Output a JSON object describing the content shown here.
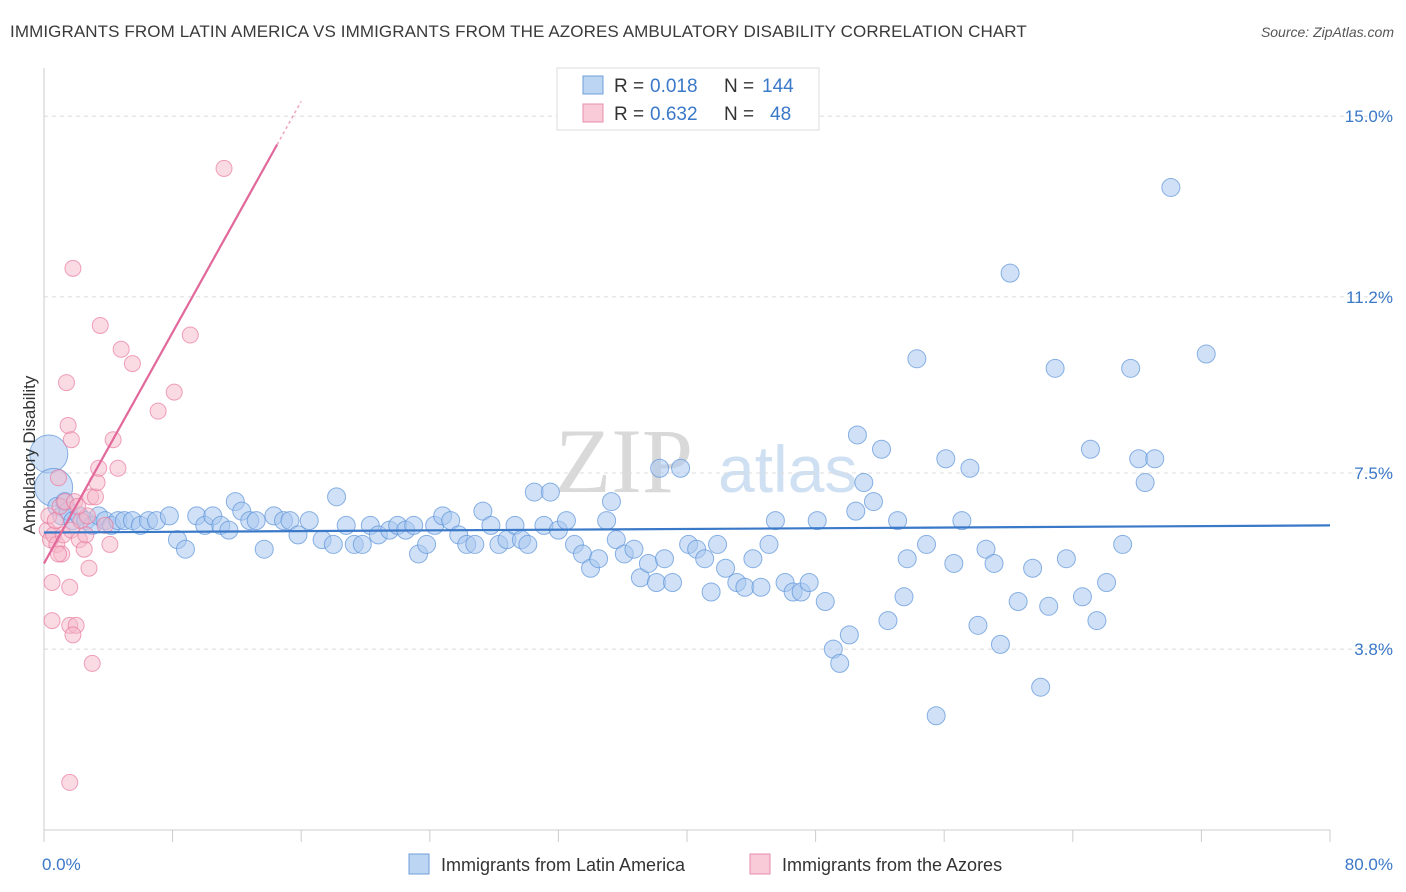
{
  "header": {
    "title": "IMMIGRANTS FROM LATIN AMERICA VS IMMIGRANTS FROM THE AZORES AMBULATORY DISABILITY CORRELATION CHART",
    "source": "Source: ZipAtlas.com"
  },
  "watermark": {
    "zip": "ZIP",
    "atlas": "atlas"
  },
  "legend": {
    "rows": [
      {
        "r_label": "R =",
        "r_value": "0.018",
        "n_label": "N =",
        "n_value": "144",
        "color": "#a9c9f0"
      },
      {
        "r_label": "R =",
        "r_value": "0.632",
        "n_label": "N =",
        "n_value": "48",
        "color": "#f5b8ca"
      }
    ]
  },
  "bottom_legend": {
    "items": [
      {
        "label": "Immigrants from Latin America",
        "color": "#a9c9f0"
      },
      {
        "label": "Immigrants from the Azores",
        "color": "#f5b8ca"
      }
    ]
  },
  "chart_data": {
    "type": "scatter",
    "xlabel": "",
    "ylabel": "Ambulatory Disability",
    "xlim": [
      0,
      80
    ],
    "ylim": [
      0,
      15.8
    ],
    "x_tick_labels": [
      "0.0%",
      "80.0%"
    ],
    "y_ticks": [
      {
        "value": 3.8,
        "label": "3.8%"
      },
      {
        "value": 7.5,
        "label": "7.5%"
      },
      {
        "value": 11.2,
        "label": "11.2%"
      },
      {
        "value": 15.0,
        "label": "15.0%"
      }
    ],
    "grid": true,
    "series": [
      {
        "name": "Immigrants from Latin America",
        "color": "#5b93d8",
        "fill": "#a9c9f0",
        "trend": {
          "x0": 0,
          "y0": 6.25,
          "x1": 80,
          "y1": 6.4
        },
        "points": [
          [
            0.3,
            7.9
          ],
          [
            0.6,
            7.2
          ],
          [
            0.8,
            6.8
          ],
          [
            1.1,
            6.6
          ],
          [
            1.3,
            6.9
          ],
          [
            1.5,
            6.7
          ],
          [
            1.8,
            6.5
          ],
          [
            2.2,
            6.6
          ],
          [
            2.6,
            6.5
          ],
          [
            3.0,
            6.4
          ],
          [
            3.4,
            6.6
          ],
          [
            3.8,
            6.5
          ],
          [
            4.2,
            6.4
          ],
          [
            4.6,
            6.5
          ],
          [
            5.0,
            6.5
          ],
          [
            5.5,
            6.5
          ],
          [
            6.0,
            6.4
          ],
          [
            6.5,
            6.5
          ],
          [
            7.0,
            6.5
          ],
          [
            7.8,
            6.6
          ],
          [
            8.3,
            6.1
          ],
          [
            8.8,
            5.9
          ],
          [
            9.5,
            6.6
          ],
          [
            10.0,
            6.4
          ],
          [
            10.5,
            6.6
          ],
          [
            11.0,
            6.4
          ],
          [
            11.5,
            6.3
          ],
          [
            11.9,
            6.9
          ],
          [
            12.3,
            6.7
          ],
          [
            12.8,
            6.5
          ],
          [
            13.2,
            6.5
          ],
          [
            13.7,
            5.9
          ],
          [
            14.3,
            6.6
          ],
          [
            14.9,
            6.5
          ],
          [
            15.3,
            6.5
          ],
          [
            15.8,
            6.2
          ],
          [
            16.5,
            6.5
          ],
          [
            17.3,
            6.1
          ],
          [
            18.0,
            6.0
          ],
          [
            18.2,
            7.0
          ],
          [
            18.8,
            6.4
          ],
          [
            19.3,
            6.0
          ],
          [
            19.8,
            6.0
          ],
          [
            20.3,
            6.4
          ],
          [
            20.8,
            6.2
          ],
          [
            21.5,
            6.3
          ],
          [
            22.0,
            6.4
          ],
          [
            22.5,
            6.3
          ],
          [
            23.0,
            6.4
          ],
          [
            23.3,
            5.8
          ],
          [
            23.8,
            6.0
          ],
          [
            24.3,
            6.4
          ],
          [
            24.8,
            6.6
          ],
          [
            25.3,
            6.5
          ],
          [
            25.8,
            6.2
          ],
          [
            26.3,
            6.0
          ],
          [
            26.8,
            6.0
          ],
          [
            27.3,
            6.7
          ],
          [
            27.8,
            6.4
          ],
          [
            28.3,
            6.0
          ],
          [
            28.8,
            6.1
          ],
          [
            29.3,
            6.4
          ],
          [
            29.7,
            6.1
          ],
          [
            30.1,
            6.0
          ],
          [
            30.5,
            7.1
          ],
          [
            31.1,
            6.4
          ],
          [
            31.5,
            7.1
          ],
          [
            32.0,
            6.3
          ],
          [
            32.5,
            6.5
          ],
          [
            33.0,
            6.0
          ],
          [
            33.5,
            5.8
          ],
          [
            34.0,
            5.5
          ],
          [
            34.5,
            5.7
          ],
          [
            35.0,
            6.5
          ],
          [
            35.3,
            6.9
          ],
          [
            35.6,
            6.1
          ],
          [
            36.1,
            5.8
          ],
          [
            36.7,
            5.9
          ],
          [
            37.1,
            5.3
          ],
          [
            37.6,
            5.6
          ],
          [
            38.1,
            5.2
          ],
          [
            38.6,
            5.7
          ],
          [
            39.1,
            5.2
          ],
          [
            39.6,
            7.6
          ],
          [
            40.1,
            6.0
          ],
          [
            40.6,
            5.9
          ],
          [
            41.1,
            5.7
          ],
          [
            41.5,
            5.0
          ],
          [
            41.9,
            6.0
          ],
          [
            42.4,
            5.5
          ],
          [
            43.1,
            5.2
          ],
          [
            43.6,
            5.1
          ],
          [
            44.1,
            5.7
          ],
          [
            44.6,
            5.1
          ],
          [
            45.1,
            6.0
          ],
          [
            45.5,
            6.5
          ],
          [
            46.1,
            5.2
          ],
          [
            46.6,
            5.0
          ],
          [
            47.1,
            5.0
          ],
          [
            47.6,
            5.2
          ],
          [
            48.1,
            6.5
          ],
          [
            48.6,
            4.8
          ],
          [
            49.1,
            3.8
          ],
          [
            49.5,
            3.5
          ],
          [
            50.1,
            4.1
          ],
          [
            50.5,
            6.7
          ],
          [
            51.0,
            7.3
          ],
          [
            51.6,
            6.9
          ],
          [
            52.1,
            8.0
          ],
          [
            52.5,
            4.4
          ],
          [
            53.1,
            6.5
          ],
          [
            53.5,
            4.9
          ],
          [
            53.7,
            5.7
          ],
          [
            54.3,
            9.9
          ],
          [
            54.9,
            6.0
          ],
          [
            55.5,
            2.4
          ],
          [
            56.1,
            7.8
          ],
          [
            56.6,
            5.6
          ],
          [
            57.1,
            6.5
          ],
          [
            57.6,
            7.6
          ],
          [
            58.1,
            4.3
          ],
          [
            58.6,
            5.9
          ],
          [
            59.1,
            5.6
          ],
          [
            59.5,
            3.9
          ],
          [
            60.1,
            11.7
          ],
          [
            60.6,
            4.8
          ],
          [
            61.5,
            5.5
          ],
          [
            62.0,
            3.0
          ],
          [
            62.5,
            4.7
          ],
          [
            62.9,
            9.7
          ],
          [
            63.6,
            5.7
          ],
          [
            64.6,
            4.9
          ],
          [
            65.1,
            8.0
          ],
          [
            65.5,
            4.4
          ],
          [
            66.1,
            5.2
          ],
          [
            67.1,
            6.0
          ],
          [
            67.6,
            9.7
          ],
          [
            68.1,
            7.8
          ],
          [
            68.5,
            7.3
          ],
          [
            69.1,
            7.8
          ],
          [
            70.1,
            13.5
          ],
          [
            72.3,
            10.0
          ],
          [
            50.6,
            8.3
          ],
          [
            38.3,
            7.6
          ]
        ]
      },
      {
        "name": "Immigrants from the Azores",
        "color": "#e87aa0",
        "fill": "#f5b8ca",
        "trend": {
          "x0": 0,
          "y0": 5.6,
          "x1": 14.5,
          "y1": 14.4
        },
        "points": [
          [
            0.2,
            6.3
          ],
          [
            0.3,
            6.6
          ],
          [
            0.4,
            6.1
          ],
          [
            0.5,
            4.4
          ],
          [
            0.5,
            5.2
          ],
          [
            0.6,
            6.2
          ],
          [
            0.7,
            6.5
          ],
          [
            0.8,
            6.0
          ],
          [
            0.9,
            7.4
          ],
          [
            1.0,
            6.8
          ],
          [
            1.1,
            5.8
          ],
          [
            1.2,
            6.2
          ],
          [
            1.3,
            6.9
          ],
          [
            1.4,
            9.4
          ],
          [
            1.5,
            8.5
          ],
          [
            1.6,
            5.1
          ],
          [
            1.6,
            4.3
          ],
          [
            1.7,
            6.3
          ],
          [
            1.7,
            8.2
          ],
          [
            1.8,
            11.8
          ],
          [
            1.9,
            6.9
          ],
          [
            2.0,
            4.3
          ],
          [
            2.2,
            6.1
          ],
          [
            2.3,
            6.5
          ],
          [
            2.5,
            5.9
          ],
          [
            2.6,
            6.2
          ],
          [
            2.7,
            6.6
          ],
          [
            2.8,
            5.5
          ],
          [
            2.9,
            7.0
          ],
          [
            3.0,
            3.5
          ],
          [
            3.2,
            7.0
          ],
          [
            3.3,
            7.3
          ],
          [
            3.4,
            7.6
          ],
          [
            3.5,
            10.6
          ],
          [
            3.8,
            6.4
          ],
          [
            4.1,
            6.0
          ],
          [
            4.3,
            8.2
          ],
          [
            4.6,
            7.6
          ],
          [
            4.8,
            10.1
          ],
          [
            5.5,
            9.8
          ],
          [
            7.1,
            8.8
          ],
          [
            8.1,
            9.2
          ],
          [
            9.1,
            10.4
          ],
          [
            11.2,
            13.9
          ],
          [
            1.6,
            1.0
          ],
          [
            1.8,
            4.1
          ],
          [
            0.9,
            5.8
          ],
          [
            2.1,
            6.8
          ]
        ]
      }
    ]
  }
}
